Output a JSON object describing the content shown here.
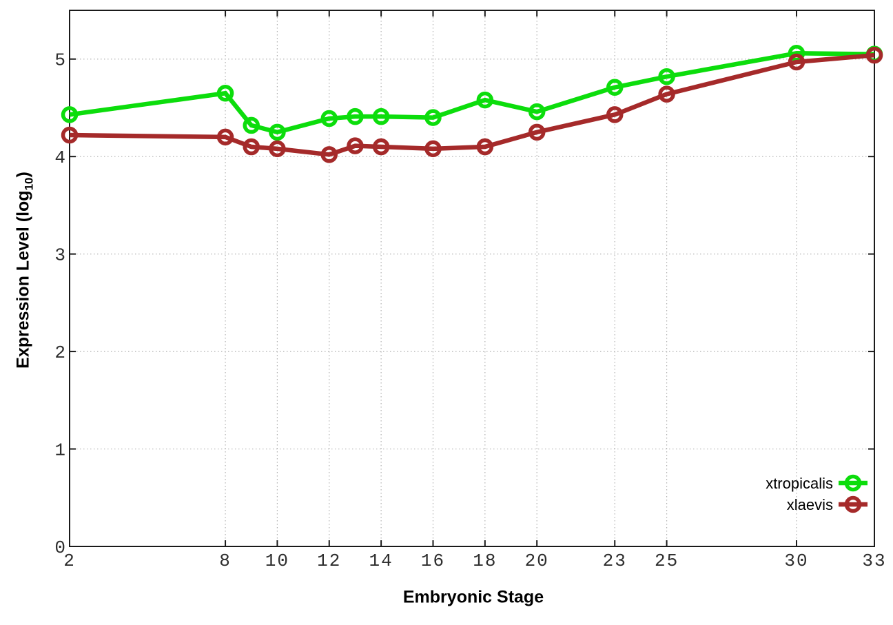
{
  "chart_data": {
    "type": "line",
    "title": "",
    "xlabel": "Embryonic Stage",
    "ylabel_parts": {
      "prefix": "Expression Level (log",
      "sub": "10",
      "suffix": ")"
    },
    "x": [
      2,
      8,
      9,
      10,
      12,
      13,
      14,
      16,
      18,
      20,
      23,
      25,
      30,
      33
    ],
    "xtick_labels": [
      2,
      8,
      10,
      12,
      14,
      16,
      18,
      20,
      23,
      25,
      30,
      33
    ],
    "ytick_labels": [
      0,
      1,
      2,
      3,
      4,
      5
    ],
    "xlim": [
      2,
      33
    ],
    "ylim": [
      0,
      5.5
    ],
    "grid": true,
    "legend_position": "inside-bottom-right",
    "series": [
      {
        "name": "xtropicalis",
        "color": "#0cdd0c",
        "values": [
          4.43,
          4.65,
          4.32,
          4.25,
          4.39,
          4.41,
          4.41,
          4.4,
          4.58,
          4.46,
          4.71,
          4.82,
          5.06,
          5.05
        ]
      },
      {
        "name": "xlaevis",
        "color": "#a52a2a",
        "values": [
          4.22,
          4.2,
          4.1,
          4.08,
          4.02,
          4.11,
          4.1,
          4.08,
          4.1,
          4.25,
          4.43,
          4.64,
          4.97,
          5.04
        ]
      }
    ],
    "style_colors": {
      "axis": "#1a1a1a",
      "grid": "#b0b0b0",
      "tick_text": "#2e2e2e",
      "legend_text": "#000000",
      "background": "#ffffff"
    }
  }
}
